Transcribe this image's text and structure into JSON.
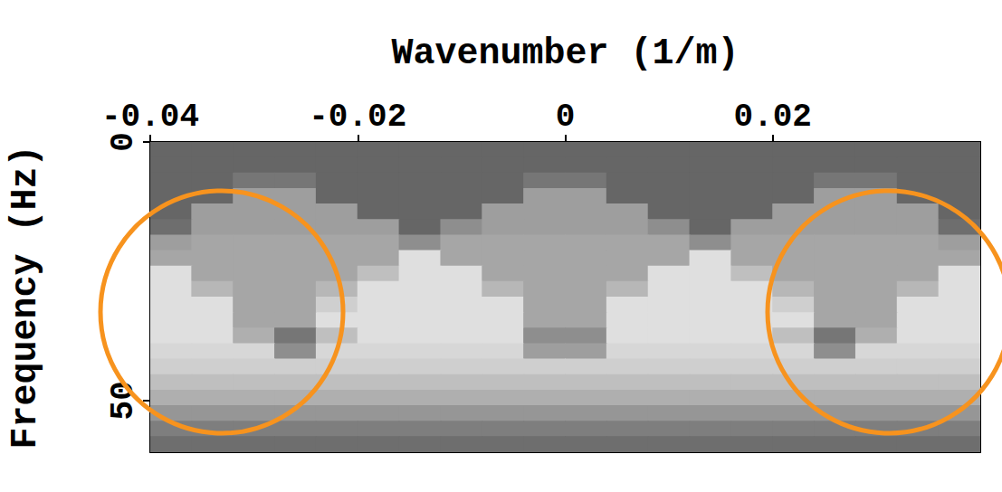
{
  "chart_data": {
    "type": "heatmap",
    "x_label": "Wavenumber (1/m)",
    "y_label": "Frequency (Hz)",
    "xlim": [
      -0.04,
      0.04
    ],
    "xticks": [
      -0.04,
      -0.02,
      0,
      0.02
    ],
    "ylim": [
      0,
      60
    ],
    "yticks": [
      0,
      50
    ],
    "zlim": [
      0,
      1
    ],
    "x": [
      -0.038,
      -0.034,
      -0.03,
      -0.026,
      -0.022,
      -0.018,
      -0.014,
      -0.01,
      -0.006,
      -0.002,
      0.002,
      0.006,
      0.01,
      0.014,
      0.018,
      0.022,
      0.026,
      0.03,
      0.034,
      0.038
    ],
    "y": [
      1.5,
      4.5,
      7.5,
      10.5,
      13.5,
      16.5,
      19.5,
      22.5,
      25.5,
      28.5,
      31.5,
      34.5,
      37.5,
      40.5,
      43.5,
      46.5,
      49.5,
      52.5,
      55.5,
      58.5
    ],
    "cells": [
      [
        0.05,
        0.05,
        0.05,
        0.05,
        0.05,
        0.05,
        0.05,
        0.05,
        0.05,
        0.05,
        0.05,
        0.05,
        0.05,
        0.05,
        0.05,
        0.05,
        0.05,
        0.05,
        0.05,
        0.05
      ],
      [
        0.05,
        0.05,
        0.05,
        0.05,
        0.05,
        0.05,
        0.05,
        0.05,
        0.05,
        0.05,
        0.05,
        0.05,
        0.05,
        0.05,
        0.05,
        0.05,
        0.05,
        0.05,
        0.05,
        0.05
      ],
      [
        0.05,
        0.05,
        0.15,
        0.15,
        0.05,
        0.05,
        0.05,
        0.05,
        0.05,
        0.15,
        0.15,
        0.05,
        0.05,
        0.05,
        0.05,
        0.05,
        0.15,
        0.15,
        0.05,
        0.05
      ],
      [
        0.05,
        0.05,
        0.4,
        0.4,
        0.05,
        0.05,
        0.05,
        0.05,
        0.05,
        0.4,
        0.4,
        0.05,
        0.05,
        0.05,
        0.05,
        0.05,
        0.4,
        0.4,
        0.05,
        0.05
      ],
      [
        0.05,
        0.4,
        0.4,
        0.4,
        0.4,
        0.05,
        0.05,
        0.05,
        0.4,
        0.4,
        0.4,
        0.4,
        0.05,
        0.05,
        0.05,
        0.4,
        0.4,
        0.4,
        0.4,
        0.05
      ],
      [
        0.1,
        0.4,
        0.4,
        0.4,
        0.4,
        0.4,
        0.05,
        0.3,
        0.4,
        0.4,
        0.4,
        0.4,
        0.3,
        0.05,
        0.4,
        0.4,
        0.4,
        0.4,
        0.4,
        0.1
      ],
      [
        0.4,
        0.45,
        0.45,
        0.45,
        0.45,
        0.45,
        0.3,
        0.45,
        0.45,
        0.45,
        0.45,
        0.45,
        0.45,
        0.3,
        0.45,
        0.45,
        0.45,
        0.45,
        0.45,
        0.4
      ],
      [
        0.45,
        0.45,
        0.45,
        0.45,
        0.45,
        0.45,
        0.8,
        0.45,
        0.45,
        0.45,
        0.45,
        0.45,
        0.45,
        0.8,
        0.45,
        0.45,
        0.45,
        0.45,
        0.45,
        0.45
      ],
      [
        0.8,
        0.45,
        0.45,
        0.45,
        0.45,
        0.6,
        0.8,
        0.8,
        0.45,
        0.45,
        0.45,
        0.45,
        0.8,
        0.8,
        0.6,
        0.45,
        0.45,
        0.45,
        0.45,
        0.8
      ],
      [
        0.8,
        0.55,
        0.45,
        0.45,
        0.55,
        0.8,
        0.8,
        0.8,
        0.55,
        0.45,
        0.45,
        0.55,
        0.8,
        0.8,
        0.8,
        0.55,
        0.45,
        0.45,
        0.55,
        0.8
      ],
      [
        0.8,
        0.8,
        0.45,
        0.45,
        0.7,
        0.8,
        0.8,
        0.8,
        0.8,
        0.45,
        0.45,
        0.8,
        0.8,
        0.8,
        0.8,
        0.7,
        0.45,
        0.45,
        0.8,
        0.8
      ],
      [
        0.8,
        0.8,
        0.45,
        0.45,
        0.8,
        0.8,
        0.8,
        0.8,
        0.8,
        0.45,
        0.45,
        0.8,
        0.8,
        0.8,
        0.8,
        0.8,
        0.45,
        0.45,
        0.8,
        0.8
      ],
      [
        0.8,
        0.8,
        0.5,
        0.15,
        0.6,
        0.8,
        0.8,
        0.8,
        0.8,
        0.3,
        0.3,
        0.8,
        0.8,
        0.8,
        0.8,
        0.6,
        0.15,
        0.5,
        0.8,
        0.8
      ],
      [
        0.75,
        0.75,
        0.75,
        0.3,
        0.75,
        0.75,
        0.75,
        0.75,
        0.75,
        0.4,
        0.4,
        0.75,
        0.75,
        0.75,
        0.75,
        0.75,
        0.3,
        0.75,
        0.75,
        0.75
      ],
      [
        0.7,
        0.7,
        0.7,
        0.7,
        0.7,
        0.7,
        0.7,
        0.7,
        0.7,
        0.7,
        0.7,
        0.7,
        0.7,
        0.7,
        0.7,
        0.7,
        0.7,
        0.7,
        0.7,
        0.7
      ],
      [
        0.6,
        0.6,
        0.6,
        0.6,
        0.6,
        0.6,
        0.6,
        0.6,
        0.6,
        0.6,
        0.6,
        0.6,
        0.6,
        0.6,
        0.6,
        0.6,
        0.6,
        0.6,
        0.6,
        0.6
      ],
      [
        0.5,
        0.5,
        0.5,
        0.5,
        0.5,
        0.5,
        0.5,
        0.5,
        0.5,
        0.5,
        0.5,
        0.5,
        0.5,
        0.5,
        0.5,
        0.5,
        0.5,
        0.5,
        0.5,
        0.5
      ],
      [
        0.35,
        0.35,
        0.35,
        0.35,
        0.35,
        0.35,
        0.35,
        0.35,
        0.35,
        0.35,
        0.35,
        0.35,
        0.35,
        0.35,
        0.35,
        0.35,
        0.35,
        0.35,
        0.35,
        0.35
      ],
      [
        0.2,
        0.2,
        0.2,
        0.2,
        0.2,
        0.2,
        0.2,
        0.2,
        0.2,
        0.2,
        0.2,
        0.2,
        0.2,
        0.2,
        0.2,
        0.2,
        0.2,
        0.2,
        0.2,
        0.2
      ],
      [
        0.1,
        0.1,
        0.1,
        0.1,
        0.1,
        0.1,
        0.1,
        0.1,
        0.1,
        0.1,
        0.1,
        0.1,
        0.1,
        0.1,
        0.1,
        0.1,
        0.1,
        0.1,
        0.1,
        0.1
      ]
    ]
  }
}
